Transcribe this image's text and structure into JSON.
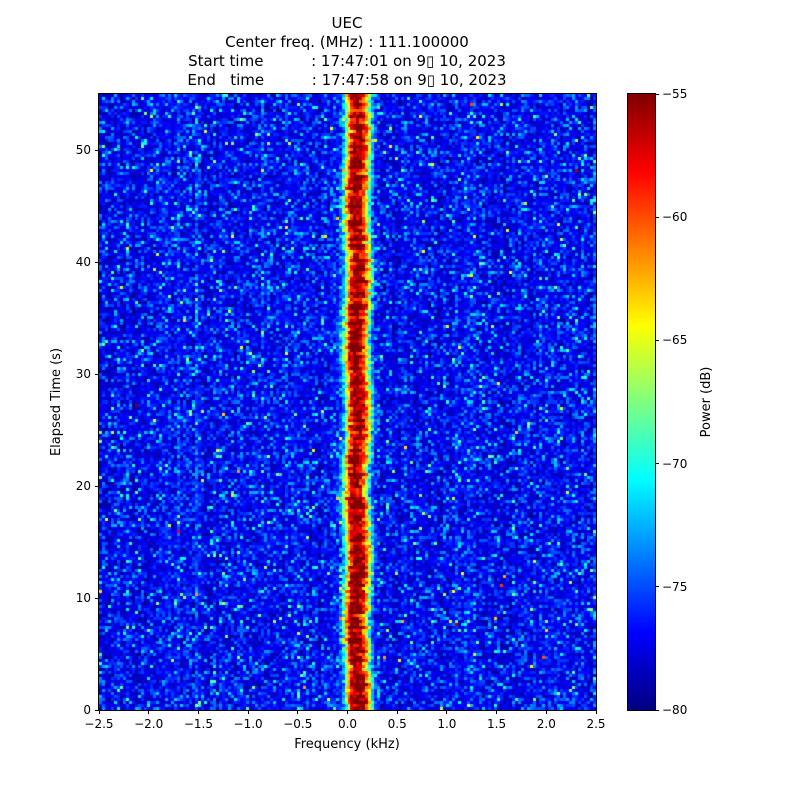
{
  "chart_data": {
    "type": "heatmap",
    "title": "UEC",
    "subtitle_lines": [
      "Center freq. (MHz) : 111.100000",
      "Start time          : 17:47:01 on 9▯ 10, 2023",
      "End   time          : 17:47:58 on 9▯ 10, 2023"
    ],
    "xlabel": "Frequency (kHz)",
    "ylabel": "Elapsed Time (s)",
    "xlim": [
      -2.5,
      2.5
    ],
    "ylim": [
      0,
      55
    ],
    "xticks": [
      -2.5,
      -2.0,
      -1.5,
      -1.0,
      -0.5,
      0.0,
      0.5,
      1.0,
      1.5,
      2.0,
      2.5
    ],
    "xtick_labels": [
      "−2.5",
      "−2.0",
      "−1.5",
      "−1.0",
      "−0.5",
      "0.0",
      "0.5",
      "1.0",
      "1.5",
      "2.0",
      "2.5"
    ],
    "yticks": [
      0,
      10,
      20,
      30,
      40,
      50
    ],
    "ytick_labels": [
      "0",
      "10",
      "20",
      "30",
      "40",
      "50"
    ],
    "colorbar": {
      "label": "Power (dB)",
      "min_db": -80,
      "max_db": -55,
      "ticks": [
        -55,
        -60,
        -65,
        -70,
        -75,
        -80
      ],
      "tick_labels": [
        "−55",
        "−60",
        "−65",
        "−70",
        "−75",
        "−80"
      ],
      "colormap": "jet"
    },
    "signal": {
      "center_khz": 0.1,
      "half_width_khz": 0.12,
      "peak_db": -55
    },
    "noise_floor_db": -78.5
  }
}
